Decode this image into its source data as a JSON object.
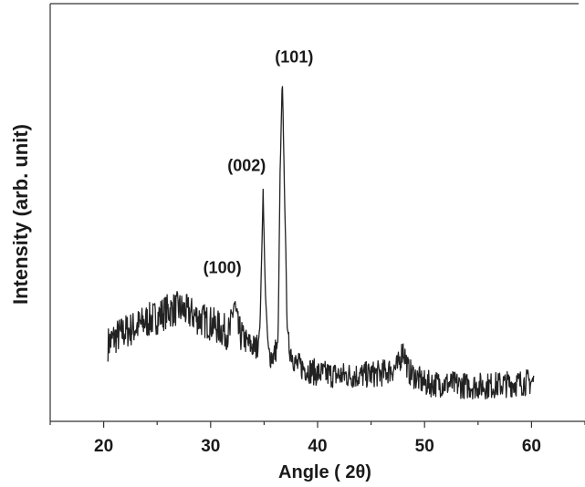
{
  "chart_data": {
    "type": "line",
    "title": "",
    "xlabel": "Angle ( 2θ)",
    "ylabel": "Intensity (arb. unit)",
    "xlim": [
      15,
      65
    ],
    "ylim": [
      0,
      100
    ],
    "x_ticks": [
      20,
      30,
      40,
      50,
      60
    ],
    "x_tick_labels": [
      "20",
      "30",
      "40",
      "50",
      "60"
    ],
    "y_ticks_shown": false,
    "grid": false,
    "legend": "none",
    "line_color": "#222222",
    "annotations": [
      {
        "text": "(100)",
        "x": 32.2
      },
      {
        "text": "(002)",
        "x": 34.9
      },
      {
        "text": "(101)",
        "x": 36.7
      }
    ],
    "series": [
      {
        "x": [
          20.4,
          21.0,
          22.0,
          23.0,
          24.0,
          25.0,
          26.0,
          27.0,
          28.0,
          29.0,
          30.0,
          31.0,
          31.8,
          32.2,
          32.6,
          33.5,
          34.3,
          34.6,
          34.8,
          34.9,
          35.1,
          35.4,
          35.9,
          36.3,
          36.5,
          36.7,
          36.9,
          37.2,
          38.0,
          40.0,
          42.0,
          44.0,
          46.0,
          47.5,
          48.0,
          48.5,
          50.0,
          52.0,
          54.0,
          56.0,
          58.0,
          60.2
        ],
        "y": [
          18.5,
          20.0,
          21.5,
          22.5,
          24.0,
          25.0,
          26.5,
          27.0,
          26.0,
          24.5,
          23.5,
          22.0,
          21.0,
          28.5,
          21.5,
          18.5,
          17.5,
          22.0,
          42.0,
          56.0,
          32.0,
          16.0,
          15.5,
          19.0,
          60.0,
          82.0,
          56.0,
          19.0,
          13.5,
          11.5,
          11.0,
          11.0,
          11.5,
          13.0,
          17.5,
          12.0,
          9.0,
          9.0,
          8.5,
          8.5,
          9.0,
          9.5
        ]
      }
    ]
  }
}
